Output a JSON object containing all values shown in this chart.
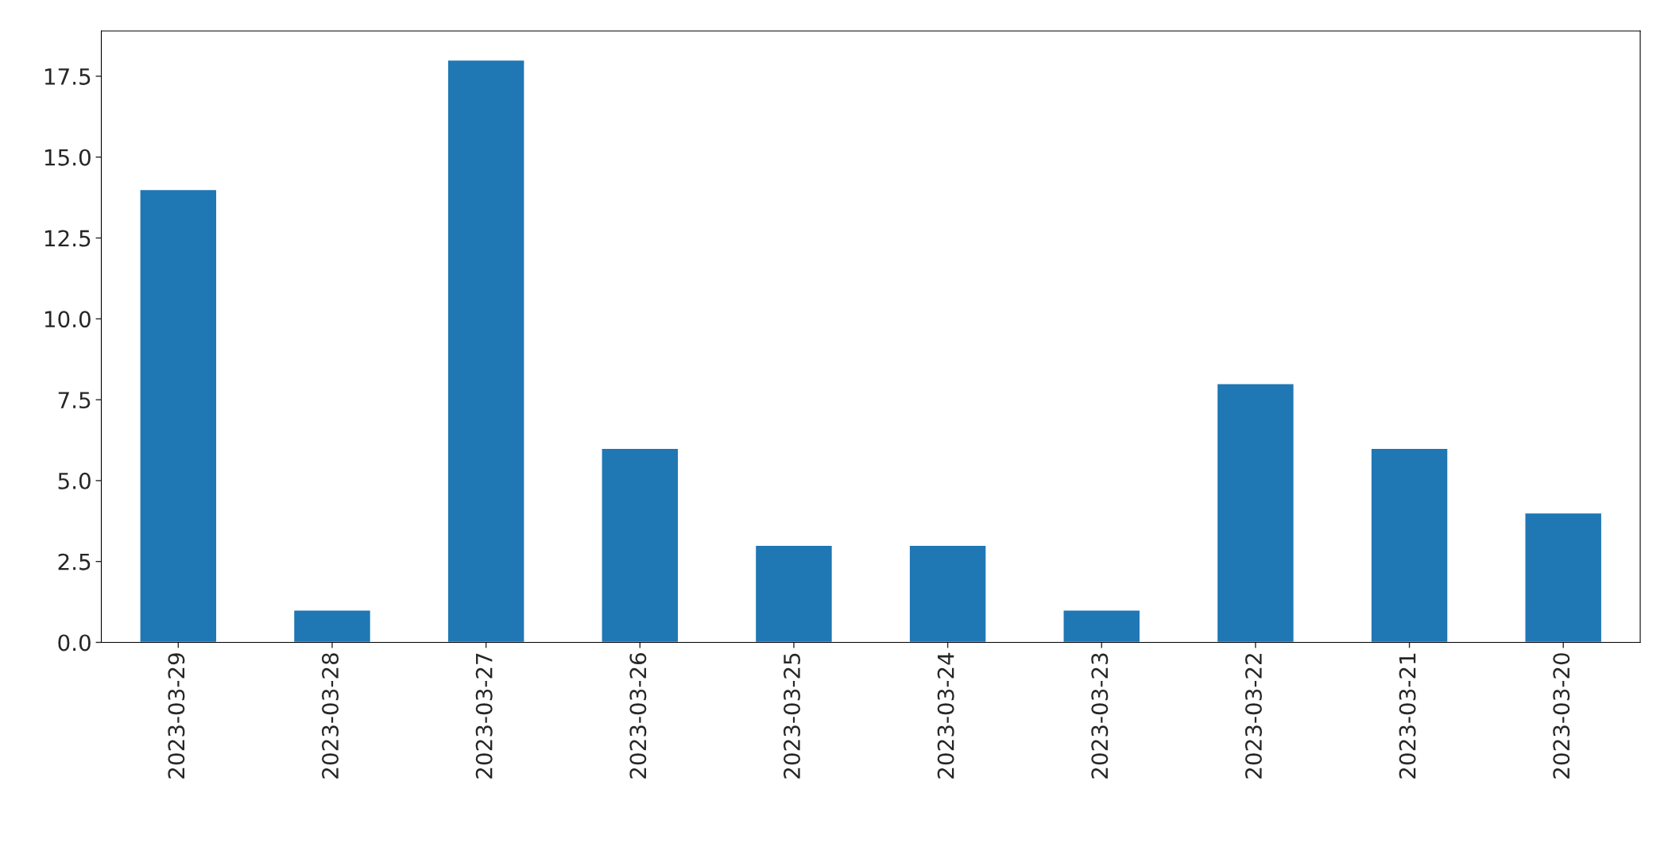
{
  "chart_data": {
    "type": "bar",
    "categories": [
      "2023-03-29",
      "2023-03-28",
      "2023-03-27",
      "2023-03-26",
      "2023-03-25",
      "2023-03-24",
      "2023-03-23",
      "2023-03-22",
      "2023-03-21",
      "2023-03-20"
    ],
    "values": [
      14,
      1,
      18,
      6,
      3,
      3,
      1,
      8,
      6,
      4
    ],
    "color": "#1f77b4",
    "ylim": [
      0,
      18.9
    ],
    "yticks": [
      {
        "value": 0,
        "label": "0.0"
      },
      {
        "value": 2.5,
        "label": "2.5"
      },
      {
        "value": 5,
        "label": "5.0"
      },
      {
        "value": 7.5,
        "label": "7.5"
      },
      {
        "value": 10,
        "label": "10.0"
      },
      {
        "value": 12.5,
        "label": "12.5"
      },
      {
        "value": 15,
        "label": "15.0"
      },
      {
        "value": 17.5,
        "label": "17.5"
      }
    ],
    "grid": false,
    "legend": false
  }
}
